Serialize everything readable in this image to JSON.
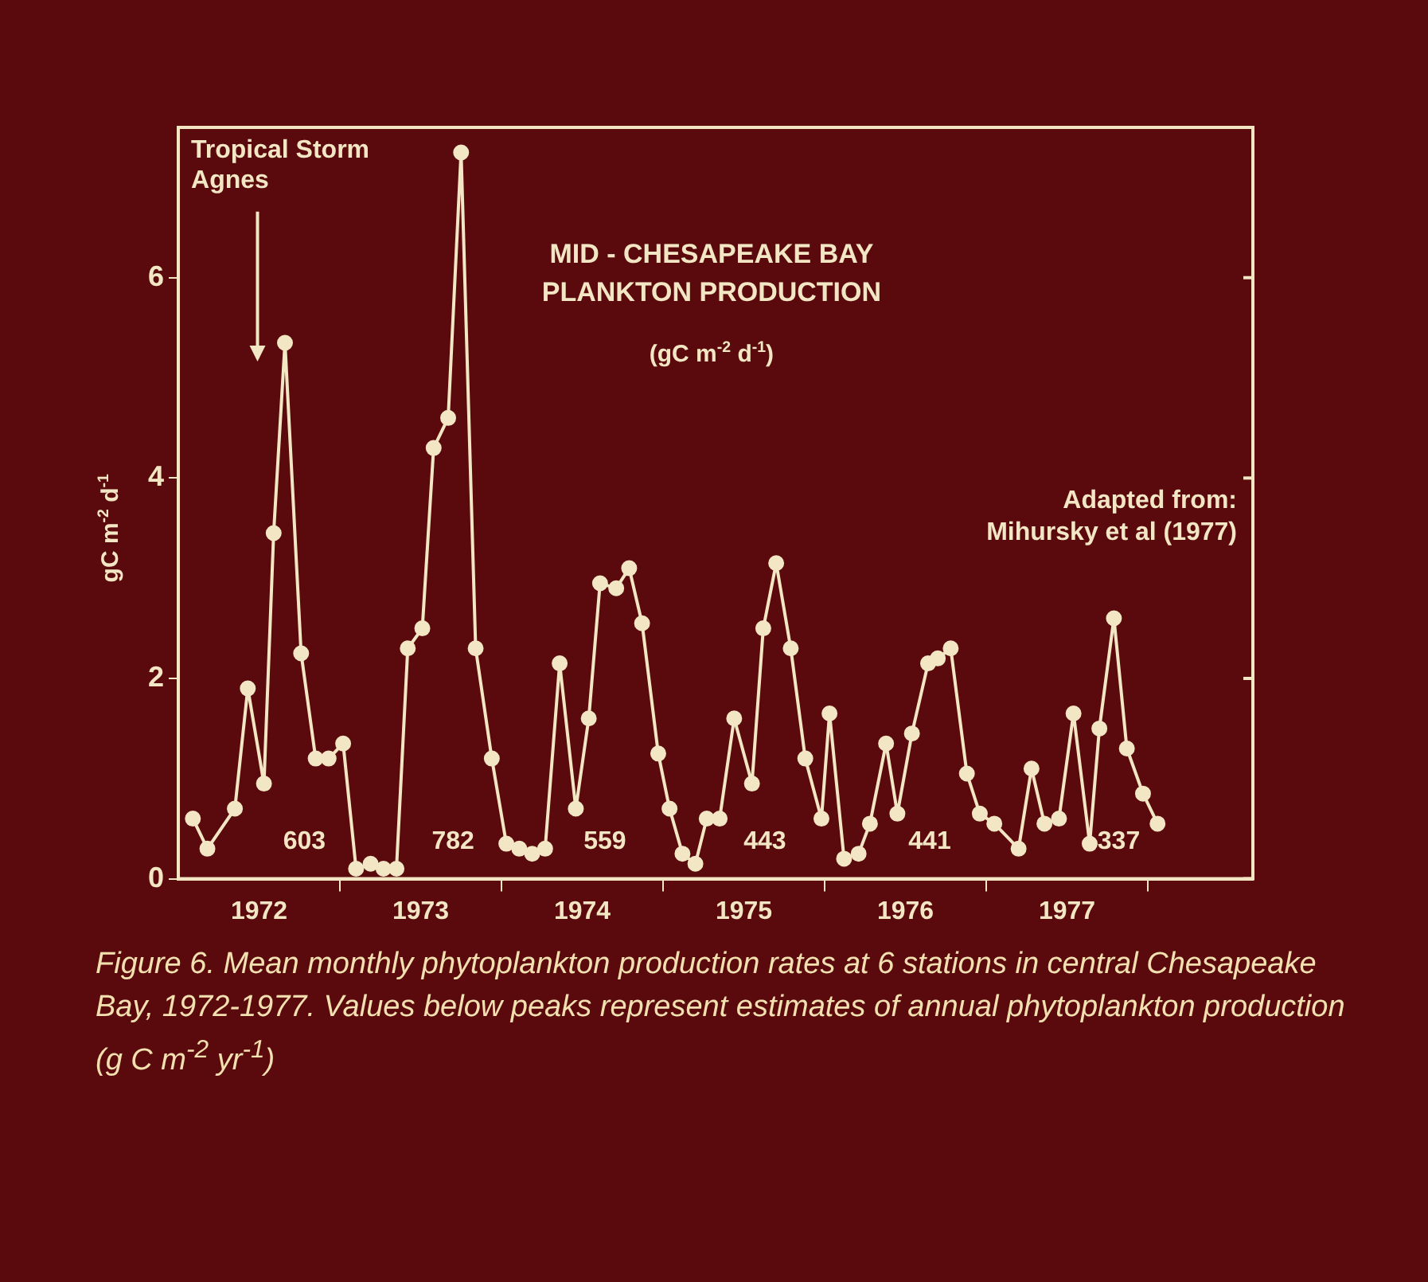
{
  "chart_data": {
    "type": "line",
    "title": "MID - CHESAPEAKE BAY\nPLANKTON PRODUCTION",
    "subtitle": "(gC m$^{-2}$ d$^{-1}$)",
    "ylabel": "gC m$^{-2}$ d$^{-1}$",
    "x": [
      1972.09,
      1972.18,
      1972.35,
      1972.43,
      1972.53,
      1972.59,
      1972.66,
      1972.76,
      1972.85,
      1972.93,
      1973.02,
      1973.1,
      1973.19,
      1973.27,
      1973.35,
      1973.42,
      1973.51,
      1973.58,
      1973.67,
      1973.75,
      1973.84,
      1973.94,
      1974.03,
      1974.11,
      1974.19,
      1974.27,
      1974.36,
      1974.46,
      1974.54,
      1974.61,
      1974.71,
      1974.79,
      1974.87,
      1974.97,
      1975.04,
      1975.12,
      1975.2,
      1975.27,
      1975.35,
      1975.44,
      1975.55,
      1975.62,
      1975.7,
      1975.79,
      1975.88,
      1975.98,
      1976.03,
      1976.12,
      1976.21,
      1976.28,
      1976.38,
      1976.45,
      1976.54,
      1976.64,
      1976.7,
      1976.78,
      1976.88,
      1976.96,
      1977.05,
      1977.2,
      1977.28,
      1977.36,
      1977.45,
      1977.54,
      1977.64,
      1977.7,
      1977.79,
      1977.87,
      1977.97,
      1978.06
    ],
    "series": [
      {
        "color": "#f2e6c4",
        "values": [
          0.6,
          0.3,
          0.7,
          1.9,
          0.95,
          3.45,
          5.35,
          2.25,
          1.2,
          1.2,
          1.35,
          0.1,
          0.15,
          0.1,
          0.1,
          2.3,
          2.5,
          4.3,
          4.6,
          7.25,
          2.3,
          1.2,
          0.35,
          0.3,
          0.25,
          0.3,
          2.15,
          0.7,
          1.6,
          2.95,
          2.9,
          3.1,
          2.55,
          1.25,
          0.7,
          0.25,
          0.15,
          0.6,
          0.6,
          1.6,
          0.95,
          2.5,
          3.15,
          2.3,
          1.2,
          0.6,
          1.65,
          0.2,
          0.25,
          0.55,
          1.35,
          0.65,
          1.45,
          2.15,
          2.2,
          2.3,
          1.05,
          0.65,
          0.55,
          0.3,
          1.1,
          0.55,
          0.6,
          1.65,
          0.35,
          1.5,
          2.6,
          1.3,
          0.85,
          0.55
        ]
      }
    ],
    "xlim": [
      1972,
      1978.65
    ],
    "xticks": [
      {
        "value": 1972.5,
        "label": "1972"
      },
      {
        "value": 1973,
        "label": null
      },
      {
        "value": 1973.5,
        "label": "1973"
      },
      {
        "value": 1974,
        "label": null
      },
      {
        "value": 1974.5,
        "label": "1974"
      },
      {
        "value": 1975,
        "label": null
      },
      {
        "value": 1975.5,
        "label": "1975"
      },
      {
        "value": 1976,
        "label": null
      },
      {
        "value": 1976.5,
        "label": "1976"
      },
      {
        "value": 1977,
        "label": null
      },
      {
        "value": 1977.5,
        "label": "1977"
      },
      {
        "value": 1978,
        "label": null
      }
    ],
    "ylim": [
      0,
      7.5
    ],
    "yticks": [
      0,
      2,
      4,
      6
    ],
    "grid": false,
    "legend": false,
    "marker": "circle",
    "line_style": "solid",
    "annotations": [
      "603",
      "782",
      "559",
      "443",
      "441",
      "337",
      "Tropical Storm\nAgnes",
      "Adapted from:\nMihursky et al (1977)",
      "Figure 6.  Mean monthly phytoplankton production rates at 6 stations in central Chesapeake Bay, 1972-1977. Values below peaks represent estimates of annual phytoplankton production (g C m$^{-2}$ yr$^{-1}$)"
    ]
  }
}
